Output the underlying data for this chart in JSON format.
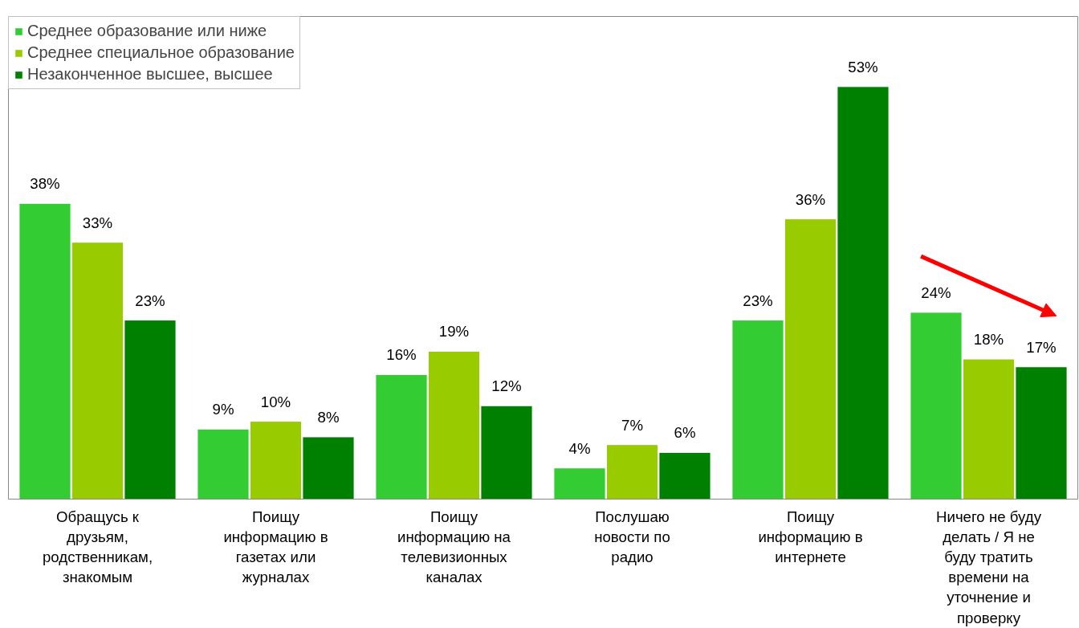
{
  "chart_data": {
    "type": "bar",
    "categories": [
      "Обращусь к друзьям, родственникам, знакомым",
      "Поищу информацию в газетах или журналах",
      "Поищу информацию на телевизионных каналах",
      "Послушаю новости по радио",
      "Поищу информацию в интернете",
      "Ничего не буду делать / Я не буду тратить времени на уточнение и проверку"
    ],
    "series": [
      {
        "name": "Среднее образование или ниже",
        "color": "#33cc33",
        "values": [
          38,
          9,
          16,
          4,
          23,
          24
        ],
        "value_labels": [
          "38%",
          "9%",
          "16%",
          "4%",
          "23%",
          "24%"
        ]
      },
      {
        "name": "Среднее специальное образование",
        "color": "#99cc00",
        "values": [
          33,
          10,
          19,
          7,
          36,
          18
        ],
        "value_labels": [
          "33%",
          "10%",
          "19%",
          "7%",
          "36%",
          "18%"
        ]
      },
      {
        "name": "Незаконченное высшее, высшее",
        "color": "#008000",
        "values": [
          23,
          8,
          12,
          6,
          53,
          17
        ],
        "value_labels": [
          "23%",
          "8%",
          "12%",
          "6%",
          "53%",
          "17%"
        ]
      }
    ],
    "legend": "top left",
    "grid": false
  }
}
